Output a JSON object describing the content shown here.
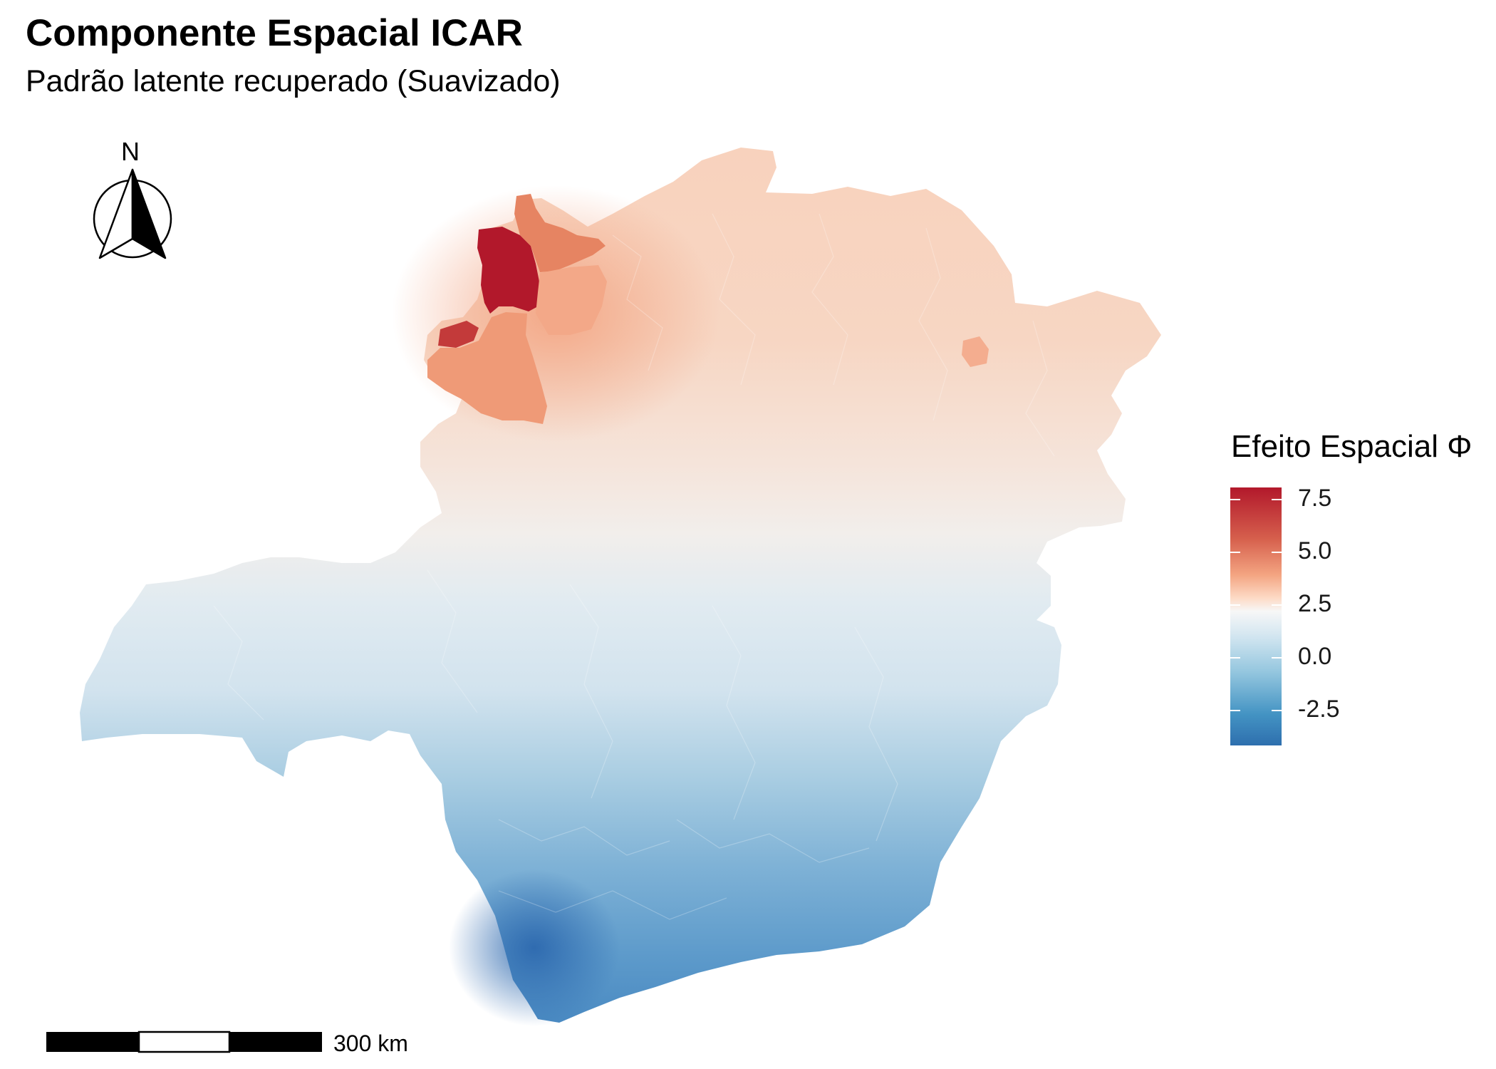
{
  "title": "Componente Espacial ICAR",
  "subtitle": "Padrão latente recuperado (Suavizado)",
  "north_arrow": {
    "label": "N",
    "icon": "north-arrow-icon"
  },
  "scale_bar": {
    "label": "300 km",
    "distance_km": 300
  },
  "legend": {
    "title": "Efeito Espacial Φ",
    "ticks": [
      "7.5",
      "5.0",
      "2.5",
      "0.0",
      "-2.5"
    ],
    "colors": [
      "#b2182b",
      "#d6604d",
      "#f4a582",
      "#fddbc7",
      "#f7f7f7",
      "#d1e5f0",
      "#92c5de",
      "#4393c3",
      "#2166ac"
    ]
  },
  "map": {
    "region": "Minas Gerais",
    "pattern": "positive values in the north/northwest, strongest in the far northwest; negative values in the south, strongest in the southwest",
    "value_range": [
      -3.6,
      8.5
    ]
  }
}
